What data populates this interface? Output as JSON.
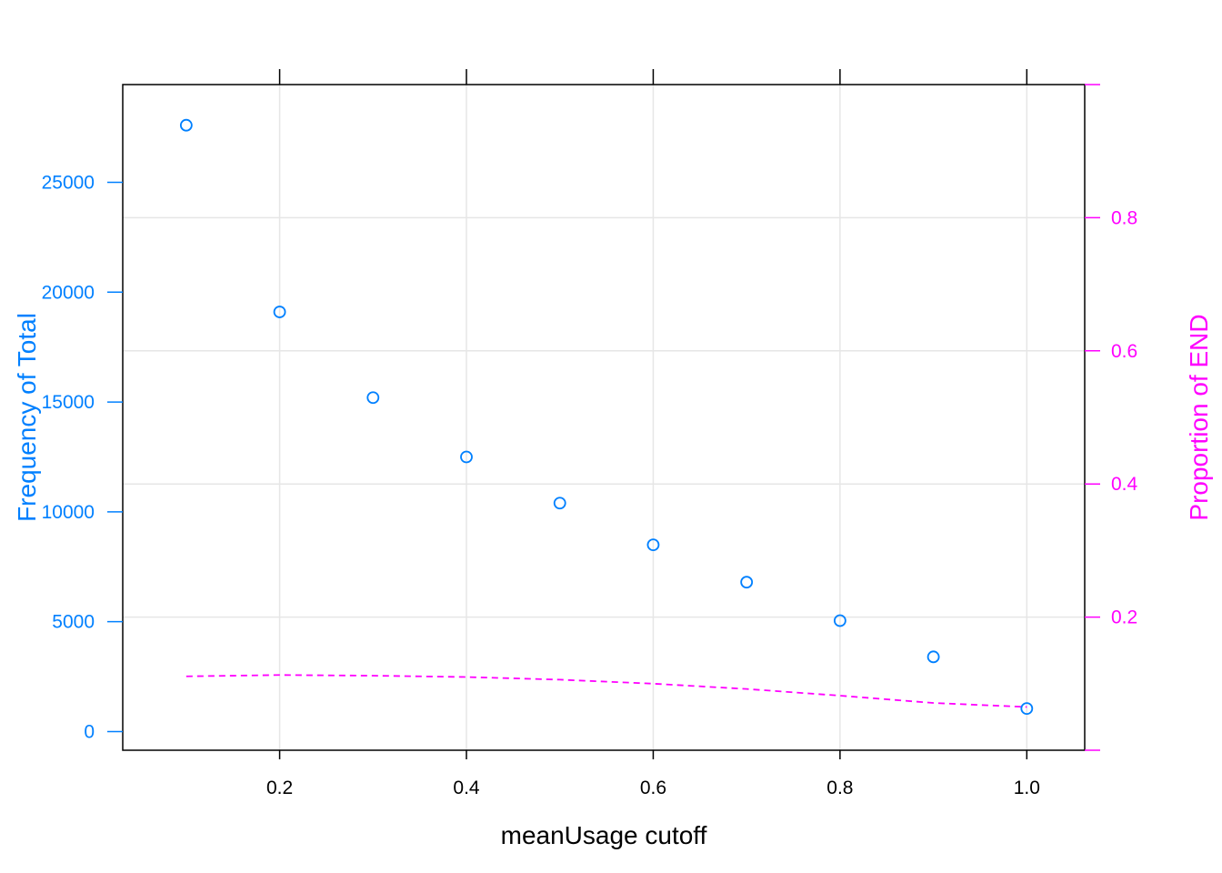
{
  "chart_data": {
    "type": "scatter",
    "xlabel": "meanUsage cutoff",
    "ylabel_left": "Frequency of Total",
    "ylabel_right": "Proportion of END",
    "x_ticks": [
      "0.2",
      "0.4",
      "0.6",
      "0.8",
      "1.0"
    ],
    "y_left_ticks": [
      "0",
      "5000",
      "10000",
      "15000",
      "20000",
      "25000"
    ],
    "y_right_ticks": [
      "0.2",
      "0.4",
      "0.6",
      "0.8"
    ],
    "xlim": [
      0.032,
      1.062
    ],
    "ylim_left": [
      -850,
      29450
    ],
    "ylim_right": [
      0,
      1
    ],
    "grid": true,
    "series": [
      {
        "axis": "left",
        "kind": "points",
        "color": "#0080ff",
        "x": [
          0.1,
          0.2,
          0.3,
          0.4,
          0.5,
          0.6,
          0.7,
          0.8,
          0.9,
          1.0
        ],
        "y": [
          27600,
          19100,
          15200,
          12500,
          10400,
          8500,
          6800,
          5050,
          3400,
          1050
        ]
      },
      {
        "axis": "right",
        "kind": "dashed-line",
        "color": "#ff00ff",
        "x": [
          0.1,
          0.2,
          0.3,
          0.4,
          0.5,
          0.6,
          0.7,
          0.8,
          0.9,
          1.0
        ],
        "y": [
          0.111,
          0.113,
          0.112,
          0.11,
          0.106,
          0.1,
          0.092,
          0.082,
          0.071,
          0.065
        ]
      }
    ],
    "colors": {
      "left_axis": "#0080ff",
      "right_axis": "#ff00ff",
      "bottom_axis": "#000000",
      "grid": "#e6e6e6"
    }
  }
}
